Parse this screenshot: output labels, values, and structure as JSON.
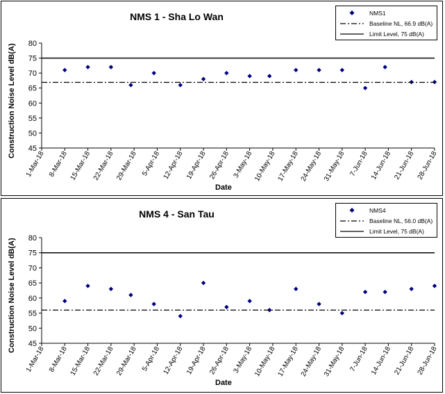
{
  "chart_data": [
    {
      "type": "scatter",
      "title": "NMS 1 - Sha Lo Wan",
      "xlabel": "Date",
      "ylabel": "Construction Noise Level  dB(A)",
      "ylim": [
        45,
        80
      ],
      "yticks": [
        "45",
        "50",
        "55",
        "60",
        "65",
        "70",
        "75",
        "80"
      ],
      "xlim": [
        "2018-03-01",
        "2018-06-28"
      ],
      "xticks": [
        "1-Mar-18",
        "8-Mar-18",
        "15-Mar-18",
        "22-Mar-18",
        "29-Mar-18",
        "5-Apr-18",
        "12-Apr-18",
        "19-Apr-18",
        "26-Apr-18",
        "3-May-18",
        "10-May-18",
        "17-May-18",
        "24-May-18",
        "31-May-18",
        "7-Jun-18",
        "14-Jun-18",
        "21-Jun-18",
        "28-Jun-18"
      ],
      "grid": false,
      "legend_position": "top-right",
      "series": [
        {
          "name": "NMS1",
          "kind": "markers",
          "color": "#000080",
          "points": [
            {
              "x": "2018-03-08",
              "y": 71
            },
            {
              "x": "2018-03-15",
              "y": 72
            },
            {
              "x": "2018-03-22",
              "y": 72
            },
            {
              "x": "2018-03-28",
              "y": 66
            },
            {
              "x": "2018-04-04",
              "y": 70
            },
            {
              "x": "2018-04-12",
              "y": 66
            },
            {
              "x": "2018-04-19",
              "y": 68
            },
            {
              "x": "2018-04-26",
              "y": 70
            },
            {
              "x": "2018-05-03",
              "y": 69
            },
            {
              "x": "2018-05-09",
              "y": 69
            },
            {
              "x": "2018-05-17",
              "y": 71
            },
            {
              "x": "2018-05-24",
              "y": 71
            },
            {
              "x": "2018-05-31",
              "y": 71
            },
            {
              "x": "2018-06-07",
              "y": 65
            },
            {
              "x": "2018-06-13",
              "y": 72
            },
            {
              "x": "2018-06-21",
              "y": 67
            },
            {
              "x": "2018-06-28",
              "y": 67
            }
          ]
        },
        {
          "name": "Baseline NL, 66.9 dB(A)",
          "kind": "dash-dot",
          "color": "#000000",
          "value": 66.9
        },
        {
          "name": "Limit Level, 75 dB(A)",
          "kind": "solid",
          "color": "#000000",
          "value": 75
        }
      ]
    },
    {
      "type": "scatter",
      "title": "NMS 4 - San Tau",
      "xlabel": "Date",
      "ylabel": "Construction Noise Level  dB(A)",
      "ylim": [
        45,
        80
      ],
      "yticks": [
        "45",
        "50",
        "55",
        "60",
        "65",
        "70",
        "75",
        "80"
      ],
      "xlim": [
        "2018-03-01",
        "2018-06-28"
      ],
      "xticks": [
        "1-Mar-18",
        "8-Mar-18",
        "15-Mar-18",
        "22-Mar-18",
        "29-Mar-18",
        "5-Apr-18",
        "12-Apr-18",
        "19-Apr-18",
        "26-Apr-18",
        "3-May-18",
        "10-May-18",
        "17-May-18",
        "24-May-18",
        "31-May-18",
        "7-Jun-18",
        "14-Jun-18",
        "21-Jun-18",
        "28-Jun-18"
      ],
      "grid": false,
      "legend_position": "top-right",
      "series": [
        {
          "name": "NMS4",
          "kind": "markers",
          "color": "#000080",
          "points": [
            {
              "x": "2018-03-08",
              "y": 59
            },
            {
              "x": "2018-03-15",
              "y": 64
            },
            {
              "x": "2018-03-22",
              "y": 63
            },
            {
              "x": "2018-03-28",
              "y": 61
            },
            {
              "x": "2018-04-04",
              "y": 58
            },
            {
              "x": "2018-04-12",
              "y": 54
            },
            {
              "x": "2018-04-19",
              "y": 65
            },
            {
              "x": "2018-04-26",
              "y": 57
            },
            {
              "x": "2018-05-03",
              "y": 59
            },
            {
              "x": "2018-05-09",
              "y": 56
            },
            {
              "x": "2018-05-17",
              "y": 63
            },
            {
              "x": "2018-05-24",
              "y": 58
            },
            {
              "x": "2018-05-31",
              "y": 55
            },
            {
              "x": "2018-06-07",
              "y": 62
            },
            {
              "x": "2018-06-13",
              "y": 62
            },
            {
              "x": "2018-06-21",
              "y": 63
            },
            {
              "x": "2018-06-28",
              "y": 64
            }
          ]
        },
        {
          "name": "Baseline NL, 56.0 dB(A)",
          "kind": "dash-dot",
          "color": "#000000",
          "value": 56.0
        },
        {
          "name": "Limit Level, 75 dB(A)",
          "kind": "solid",
          "color": "#000000",
          "value": 75
        }
      ]
    }
  ]
}
